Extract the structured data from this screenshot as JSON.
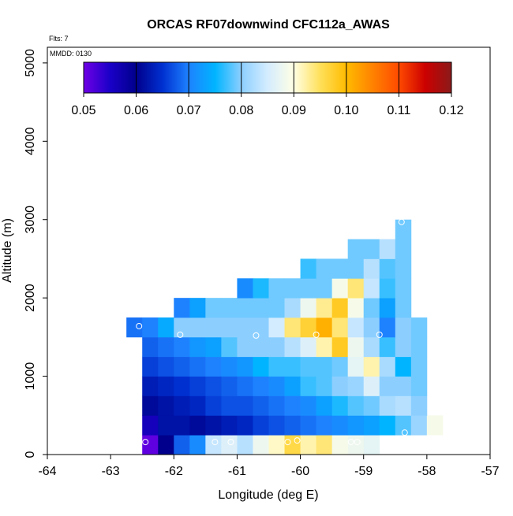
{
  "chart_data": {
    "type": "heatmap",
    "title": "ORCAS RF07downwind CFC112a_AWAS",
    "annotations": [
      "Flts: 7",
      "MMDD: 0130"
    ],
    "xlabel": "Longitude (deg E)",
    "ylabel": "Altitude (m)",
    "xlim": [
      -64,
      -57
    ],
    "ylim": [
      0,
      5200
    ],
    "xticks": [
      "-64",
      "-63",
      "-62",
      "-61",
      "-60",
      "-59",
      "-58",
      "-57"
    ],
    "xtick_values": [
      -64,
      -63,
      -62,
      -61,
      -60,
      -59,
      -58,
      -57
    ],
    "yticks": [
      "0",
      "1000",
      "2000",
      "3000",
      "4000",
      "5000"
    ],
    "ytick_values": [
      0,
      1000,
      2000,
      3000,
      4000,
      5000
    ],
    "colorbar": {
      "min": 0.05,
      "max": 0.12,
      "ticks": [
        "0.05",
        "0.06",
        "0.07",
        "0.08",
        "0.09",
        "0.10",
        "0.11",
        "0.12"
      ],
      "tick_values": [
        0.05,
        0.06,
        0.07,
        0.08,
        0.09,
        0.1,
        0.11,
        0.12
      ],
      "colors": [
        "#6f00e6",
        "#1a00c8",
        "#00008c",
        "#0030d0",
        "#1e82ff",
        "#00b4ff",
        "#8ccfff",
        "#d4ecff",
        "#ffffe4",
        "#ffe05a",
        "#ffbb00",
        "#ff8200",
        "#ff4a00",
        "#cc0000",
        "#8b1a1a"
      ]
    },
    "cell_size": {
      "dlon": 0.25,
      "dalt": 250
    },
    "cells": [
      {
        "lon": -62.5,
        "alt": 0,
        "v": 0.051
      },
      {
        "lon": -62.25,
        "alt": 0,
        "v": 0.06
      },
      {
        "lon": -62.0,
        "alt": 0,
        "v": 0.068
      },
      {
        "lon": -61.75,
        "alt": 0,
        "v": 0.071
      },
      {
        "lon": -61.5,
        "alt": 0,
        "v": 0.084
      },
      {
        "lon": -61.25,
        "alt": 0,
        "v": 0.086
      },
      {
        "lon": -61.0,
        "alt": 0,
        "v": 0.083
      },
      {
        "lon": -60.75,
        "alt": 0,
        "v": 0.088
      },
      {
        "lon": -60.5,
        "alt": 0,
        "v": 0.091
      },
      {
        "lon": -60.25,
        "alt": 0,
        "v": 0.096
      },
      {
        "lon": -60.0,
        "alt": 0,
        "v": 0.092
      },
      {
        "lon": -59.75,
        "alt": 0,
        "v": 0.094
      },
      {
        "lon": -59.5,
        "alt": 0,
        "v": 0.089
      },
      {
        "lon": -59.25,
        "alt": 0,
        "v": 0.088
      },
      {
        "lon": -59.0,
        "alt": 0,
        "v": 0.087
      },
      {
        "lon": -62.5,
        "alt": 250,
        "v": 0.056
      },
      {
        "lon": -62.25,
        "alt": 250,
        "v": 0.062
      },
      {
        "lon": -62.0,
        "alt": 250,
        "v": 0.062
      },
      {
        "lon": -61.75,
        "alt": 250,
        "v": 0.061
      },
      {
        "lon": -61.5,
        "alt": 250,
        "v": 0.062
      },
      {
        "lon": -61.25,
        "alt": 250,
        "v": 0.063
      },
      {
        "lon": -61.0,
        "alt": 250,
        "v": 0.064
      },
      {
        "lon": -60.75,
        "alt": 250,
        "v": 0.066
      },
      {
        "lon": -60.5,
        "alt": 250,
        "v": 0.067
      },
      {
        "lon": -60.25,
        "alt": 250,
        "v": 0.068
      },
      {
        "lon": -60.0,
        "alt": 250,
        "v": 0.069
      },
      {
        "lon": -59.75,
        "alt": 250,
        "v": 0.07
      },
      {
        "lon": -59.5,
        "alt": 250,
        "v": 0.071
      },
      {
        "lon": -59.25,
        "alt": 250,
        "v": 0.072
      },
      {
        "lon": -59.0,
        "alt": 250,
        "v": 0.073
      },
      {
        "lon": -58.75,
        "alt": 250,
        "v": 0.075
      },
      {
        "lon": -58.5,
        "alt": 250,
        "v": 0.078
      },
      {
        "lon": -58.25,
        "alt": 250,
        "v": 0.081
      },
      {
        "lon": -58.0,
        "alt": 250,
        "v": 0.089
      },
      {
        "lon": -62.5,
        "alt": 500,
        "v": 0.061
      },
      {
        "lon": -62.25,
        "alt": 500,
        "v": 0.062
      },
      {
        "lon": -62.0,
        "alt": 500,
        "v": 0.063
      },
      {
        "lon": -61.75,
        "alt": 500,
        "v": 0.064
      },
      {
        "lon": -61.5,
        "alt": 500,
        "v": 0.066
      },
      {
        "lon": -61.25,
        "alt": 500,
        "v": 0.067
      },
      {
        "lon": -61.0,
        "alt": 500,
        "v": 0.067
      },
      {
        "lon": -60.75,
        "alt": 500,
        "v": 0.068
      },
      {
        "lon": -60.5,
        "alt": 500,
        "v": 0.069
      },
      {
        "lon": -60.25,
        "alt": 500,
        "v": 0.07
      },
      {
        "lon": -60.0,
        "alt": 500,
        "v": 0.071
      },
      {
        "lon": -59.75,
        "alt": 500,
        "v": 0.073
      },
      {
        "lon": -59.5,
        "alt": 500,
        "v": 0.076
      },
      {
        "lon": -59.25,
        "alt": 500,
        "v": 0.078
      },
      {
        "lon": -59.0,
        "alt": 500,
        "v": 0.079
      },
      {
        "lon": -58.75,
        "alt": 500,
        "v": 0.082
      },
      {
        "lon": -58.5,
        "alt": 500,
        "v": 0.083
      },
      {
        "lon": -58.25,
        "alt": 500,
        "v": 0.08
      },
      {
        "lon": -62.5,
        "alt": 750,
        "v": 0.063
      },
      {
        "lon": -62.25,
        "alt": 750,
        "v": 0.064
      },
      {
        "lon": -62.0,
        "alt": 750,
        "v": 0.065
      },
      {
        "lon": -61.75,
        "alt": 750,
        "v": 0.066
      },
      {
        "lon": -61.5,
        "alt": 750,
        "v": 0.067
      },
      {
        "lon": -61.25,
        "alt": 750,
        "v": 0.068
      },
      {
        "lon": -61.0,
        "alt": 750,
        "v": 0.069
      },
      {
        "lon": -60.75,
        "alt": 750,
        "v": 0.07
      },
      {
        "lon": -60.5,
        "alt": 750,
        "v": 0.071
      },
      {
        "lon": -60.25,
        "alt": 750,
        "v": 0.073
      },
      {
        "lon": -60.0,
        "alt": 750,
        "v": 0.077
      },
      {
        "lon": -59.75,
        "alt": 750,
        "v": 0.078
      },
      {
        "lon": -59.5,
        "alt": 750,
        "v": 0.08
      },
      {
        "lon": -59.25,
        "alt": 750,
        "v": 0.081
      },
      {
        "lon": -59.0,
        "alt": 750,
        "v": 0.086
      },
      {
        "lon": -58.75,
        "alt": 750,
        "v": 0.08
      },
      {
        "lon": -58.5,
        "alt": 750,
        "v": 0.08
      },
      {
        "lon": -58.25,
        "alt": 750,
        "v": 0.079
      },
      {
        "lon": -62.5,
        "alt": 1000,
        "v": 0.066
      },
      {
        "lon": -62.25,
        "alt": 1000,
        "v": 0.067
      },
      {
        "lon": -62.0,
        "alt": 1000,
        "v": 0.068
      },
      {
        "lon": -61.75,
        "alt": 1000,
        "v": 0.069
      },
      {
        "lon": -61.5,
        "alt": 1000,
        "v": 0.07
      },
      {
        "lon": -61.25,
        "alt": 1000,
        "v": 0.071
      },
      {
        "lon": -61.0,
        "alt": 1000,
        "v": 0.072
      },
      {
        "lon": -60.75,
        "alt": 1000,
        "v": 0.075
      },
      {
        "lon": -60.5,
        "alt": 1000,
        "v": 0.077
      },
      {
        "lon": -60.25,
        "alt": 1000,
        "v": 0.077
      },
      {
        "lon": -60.0,
        "alt": 1000,
        "v": 0.078
      },
      {
        "lon": -59.75,
        "alt": 1000,
        "v": 0.078
      },
      {
        "lon": -59.5,
        "alt": 1000,
        "v": 0.079
      },
      {
        "lon": -59.25,
        "alt": 1000,
        "v": 0.087
      },
      {
        "lon": -59.0,
        "alt": 1000,
        "v": 0.092
      },
      {
        "lon": -58.75,
        "alt": 1000,
        "v": 0.082
      },
      {
        "lon": -58.5,
        "alt": 1000,
        "v": 0.075
      },
      {
        "lon": -58.25,
        "alt": 1000,
        "v": 0.079
      },
      {
        "lon": -62.5,
        "alt": 1250,
        "v": 0.068
      },
      {
        "lon": -62.25,
        "alt": 1250,
        "v": 0.069
      },
      {
        "lon": -62.0,
        "alt": 1250,
        "v": 0.07
      },
      {
        "lon": -61.75,
        "alt": 1250,
        "v": 0.072
      },
      {
        "lon": -61.5,
        "alt": 1250,
        "v": 0.073
      },
      {
        "lon": -61.25,
        "alt": 1250,
        "v": 0.078
      },
      {
        "lon": -61.0,
        "alt": 1250,
        "v": 0.08
      },
      {
        "lon": -60.75,
        "alt": 1250,
        "v": 0.08
      },
      {
        "lon": -60.5,
        "alt": 1250,
        "v": 0.08
      },
      {
        "lon": -60.25,
        "alt": 1250,
        "v": 0.083
      },
      {
        "lon": -60.0,
        "alt": 1250,
        "v": 0.086
      },
      {
        "lon": -59.75,
        "alt": 1250,
        "v": 0.092
      },
      {
        "lon": -59.5,
        "alt": 1250,
        "v": 0.098
      },
      {
        "lon": -59.25,
        "alt": 1250,
        "v": 0.088
      },
      {
        "lon": -59.0,
        "alt": 1250,
        "v": 0.082
      },
      {
        "lon": -58.75,
        "alt": 1250,
        "v": 0.077
      },
      {
        "lon": -58.5,
        "alt": 1250,
        "v": 0.08
      },
      {
        "lon": -58.25,
        "alt": 1250,
        "v": 0.079
      },
      {
        "lon": -62.75,
        "alt": 1500,
        "v": 0.069
      },
      {
        "lon": -62.5,
        "alt": 1500,
        "v": 0.07
      },
      {
        "lon": -62.25,
        "alt": 1500,
        "v": 0.074
      },
      {
        "lon": -62.0,
        "alt": 1500,
        "v": 0.08
      },
      {
        "lon": -61.75,
        "alt": 1500,
        "v": 0.08
      },
      {
        "lon": -61.5,
        "alt": 1500,
        "v": 0.08
      },
      {
        "lon": -61.25,
        "alt": 1500,
        "v": 0.08
      },
      {
        "lon": -61.0,
        "alt": 1500,
        "v": 0.08
      },
      {
        "lon": -60.75,
        "alt": 1500,
        "v": 0.08
      },
      {
        "lon": -60.5,
        "alt": 1500,
        "v": 0.085
      },
      {
        "lon": -60.25,
        "alt": 1500,
        "v": 0.094
      },
      {
        "lon": -60.0,
        "alt": 1500,
        "v": 0.097
      },
      {
        "lon": -59.75,
        "alt": 1500,
        "v": 0.101
      },
      {
        "lon": -59.5,
        "alt": 1500,
        "v": 0.094
      },
      {
        "lon": -59.25,
        "alt": 1500,
        "v": 0.084
      },
      {
        "lon": -59.0,
        "alt": 1500,
        "v": 0.08
      },
      {
        "lon": -58.75,
        "alt": 1500,
        "v": 0.07
      },
      {
        "lon": -58.5,
        "alt": 1500,
        "v": 0.08
      },
      {
        "lon": -58.25,
        "alt": 1500,
        "v": 0.079
      },
      {
        "lon": -62.0,
        "alt": 1750,
        "v": 0.07
      },
      {
        "lon": -61.75,
        "alt": 1750,
        "v": 0.073
      },
      {
        "lon": -61.5,
        "alt": 1750,
        "v": 0.079
      },
      {
        "lon": -61.25,
        "alt": 1750,
        "v": 0.079
      },
      {
        "lon": -61.0,
        "alt": 1750,
        "v": 0.079
      },
      {
        "lon": -60.75,
        "alt": 1750,
        "v": 0.079
      },
      {
        "lon": -60.5,
        "alt": 1750,
        "v": 0.079
      },
      {
        "lon": -60.25,
        "alt": 1750,
        "v": 0.082
      },
      {
        "lon": -60.0,
        "alt": 1750,
        "v": 0.088
      },
      {
        "lon": -59.75,
        "alt": 1750,
        "v": 0.093
      },
      {
        "lon": -59.5,
        "alt": 1750,
        "v": 0.098
      },
      {
        "lon": -59.25,
        "alt": 1750,
        "v": 0.089
      },
      {
        "lon": -59.0,
        "alt": 1750,
        "v": 0.079
      },
      {
        "lon": -58.75,
        "alt": 1750,
        "v": 0.073
      },
      {
        "lon": -58.5,
        "alt": 1750,
        "v": 0.079
      },
      {
        "lon": -61.0,
        "alt": 2000,
        "v": 0.071
      },
      {
        "lon": -60.75,
        "alt": 2000,
        "v": 0.076
      },
      {
        "lon": -60.5,
        "alt": 2000,
        "v": 0.079
      },
      {
        "lon": -60.25,
        "alt": 2000,
        "v": 0.079
      },
      {
        "lon": -60.0,
        "alt": 2000,
        "v": 0.079
      },
      {
        "lon": -59.75,
        "alt": 2000,
        "v": 0.079
      },
      {
        "lon": -59.5,
        "alt": 2000,
        "v": 0.089
      },
      {
        "lon": -59.25,
        "alt": 2000,
        "v": 0.094
      },
      {
        "lon": -59.0,
        "alt": 2000,
        "v": 0.084
      },
      {
        "lon": -58.75,
        "alt": 2000,
        "v": 0.077
      },
      {
        "lon": -58.5,
        "alt": 2000,
        "v": 0.079
      },
      {
        "lon": -60.0,
        "alt": 2250,
        "v": 0.077
      },
      {
        "lon": -59.75,
        "alt": 2250,
        "v": 0.079
      },
      {
        "lon": -59.5,
        "alt": 2250,
        "v": 0.079
      },
      {
        "lon": -59.25,
        "alt": 2250,
        "v": 0.079
      },
      {
        "lon": -59.0,
        "alt": 2250,
        "v": 0.083
      },
      {
        "lon": -58.75,
        "alt": 2250,
        "v": 0.078
      },
      {
        "lon": -58.5,
        "alt": 2250,
        "v": 0.079
      },
      {
        "lon": -59.25,
        "alt": 2500,
        "v": 0.079
      },
      {
        "lon": -59.0,
        "alt": 2500,
        "v": 0.079
      },
      {
        "lon": -58.75,
        "alt": 2500,
        "v": 0.083
      },
      {
        "lon": -58.5,
        "alt": 2500,
        "v": 0.079
      },
      {
        "lon": -58.5,
        "alt": 2750,
        "v": 0.079
      }
    ],
    "flight_points": [
      {
        "lon": -62.45,
        "alt": 160
      },
      {
        "lon": -61.35,
        "alt": 160
      },
      {
        "lon": -61.1,
        "alt": 160
      },
      {
        "lon": -60.2,
        "alt": 160
      },
      {
        "lon": -60.05,
        "alt": 180
      },
      {
        "lon": -59.2,
        "alt": 160
      },
      {
        "lon": -59.1,
        "alt": 160
      },
      {
        "lon": -58.35,
        "alt": 280
      },
      {
        "lon": -62.55,
        "alt": 1640
      },
      {
        "lon": -61.9,
        "alt": 1530
      },
      {
        "lon": -60.7,
        "alt": 1520
      },
      {
        "lon": -59.75,
        "alt": 1530
      },
      {
        "lon": -58.75,
        "alt": 1530
      },
      {
        "lon": -58.4,
        "alt": 2970
      }
    ]
  }
}
